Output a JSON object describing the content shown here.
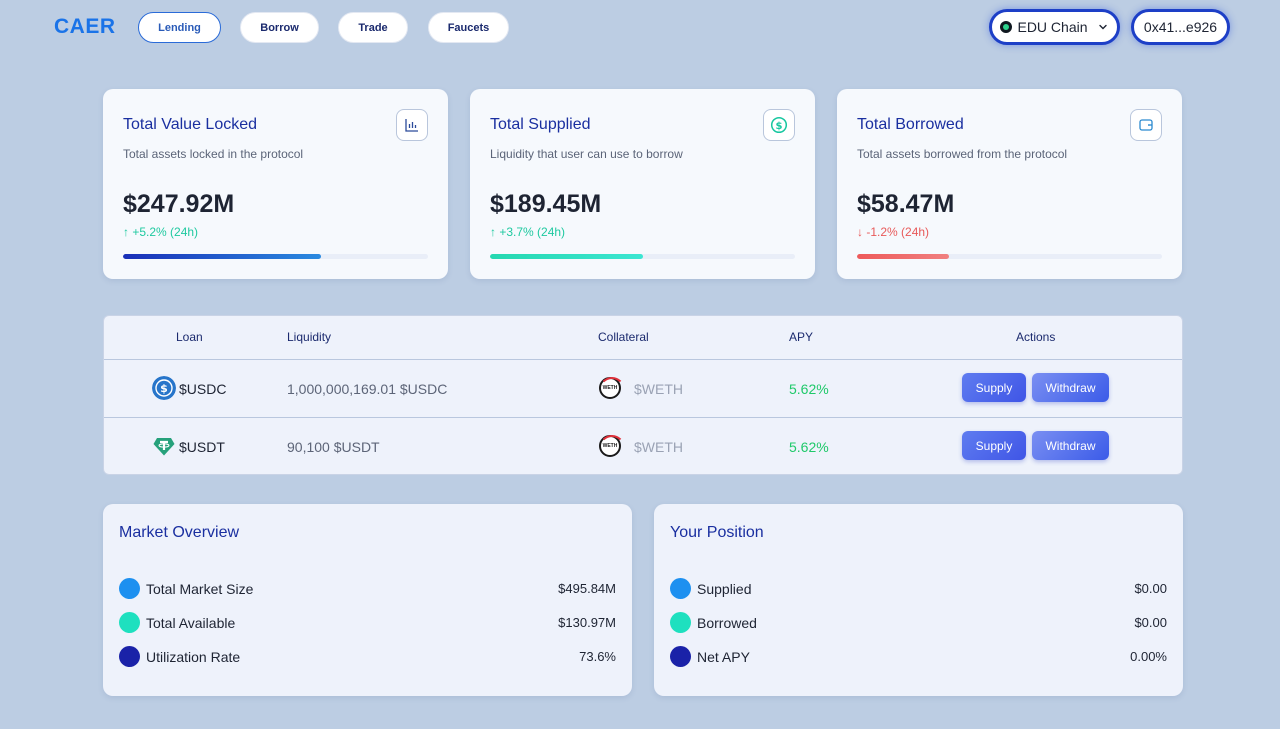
{
  "header": {
    "logo": "CAER",
    "nav": [
      {
        "label": "Lending",
        "active": true
      },
      {
        "label": "Borrow",
        "active": false
      },
      {
        "label": "Trade",
        "active": false
      },
      {
        "label": "Faucets",
        "active": false
      }
    ],
    "chain": "EDU Chain",
    "wallet": "0x41...e926"
  },
  "stats": [
    {
      "title": "Total Value Locked",
      "subtitle": "Total assets locked in the protocol",
      "value": "$247.92M",
      "change": "+5.2% (24h)",
      "direction": "up",
      "icon": "bar-chart-icon",
      "progress": 0.65,
      "bar_color": "#1a3fc0"
    },
    {
      "title": "Total Supplied",
      "subtitle": "Liquidity that user can use to borrow",
      "value": "$189.45M",
      "change": "+3.7% (24h)",
      "direction": "up",
      "icon": "dollar-circle-icon",
      "progress": 0.5,
      "bar_color": "#2de0c0"
    },
    {
      "title": "Total Borrowed",
      "subtitle": "Total assets borrowed from the protocol",
      "value": "$58.47M",
      "change": "-1.2% (24h)",
      "direction": "down",
      "icon": "wallet-icon",
      "progress": 0.3,
      "bar_color": "#ee5a5a"
    }
  ],
  "table": {
    "headers": [
      "Loan",
      "Liquidity",
      "Collateral",
      "APY",
      "Actions"
    ],
    "rows": [
      {
        "loan": "$USDC",
        "liquidity": "1,000,000,169.01 $USDC",
        "collateral": "$WETH",
        "apy": "5.62%",
        "supply": "Supply",
        "withdraw": "Withdraw"
      },
      {
        "loan": "$USDT",
        "liquidity": "90,100 $USDT",
        "collateral": "$WETH",
        "apy": "5.62%",
        "supply": "Supply",
        "withdraw": "Withdraw"
      }
    ],
    "weth_badge": "WETH"
  },
  "market": {
    "title": "Market Overview",
    "items": [
      {
        "label": "Total Market Size",
        "value": "$495.84M"
      },
      {
        "label": "Total Available",
        "value": "$130.97M"
      },
      {
        "label": "Utilization Rate",
        "value": "73.6%"
      }
    ]
  },
  "position": {
    "title": "Your Position",
    "items": [
      {
        "label": "Supplied",
        "value": "$0.00"
      },
      {
        "label": "Borrowed",
        "value": "$0.00"
      },
      {
        "label": "Net APY",
        "value": "0.00%"
      }
    ]
  },
  "colors": {
    "dot_blue": "#1d90f0",
    "dot_teal": "#1ee0bf",
    "dot_navy": "#1a22a8",
    "apy_green": "#1fc96a",
    "usdc_blue": "#2775ca",
    "usdt_green": "#26a17b"
  }
}
